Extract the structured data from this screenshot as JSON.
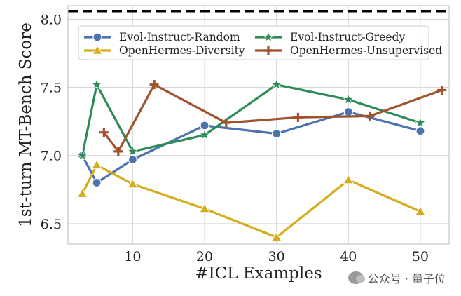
{
  "chart_data": {
    "type": "line",
    "xlabel": "#ICL Examples",
    "ylabel": "1st-turn MT-Bench Score",
    "xlim": [
      1,
      54
    ],
    "ylim": [
      6.35,
      8.1
    ],
    "xticks": [
      10,
      20,
      30,
      40,
      50
    ],
    "yticks": [
      6.5,
      7.0,
      7.5,
      8.0
    ],
    "grid": true,
    "reference_line": {
      "y": 8.06,
      "style": "dashed"
    },
    "legend_position": "top",
    "series": [
      {
        "name": "Evol-Instruct-Random",
        "color": "#4c72b0",
        "marker": "circle",
        "x": [
          3,
          5,
          10,
          20,
          30,
          40,
          50
        ],
        "y": [
          7.0,
          6.8,
          6.97,
          7.22,
          7.16,
          7.32,
          7.18
        ]
      },
      {
        "name": "Evol-Instruct-Greedy",
        "color": "#2e8b57",
        "marker": "star",
        "x": [
          3,
          5,
          10,
          20,
          30,
          40,
          50
        ],
        "y": [
          7.0,
          7.52,
          7.03,
          7.15,
          7.52,
          7.41,
          7.24
        ]
      },
      {
        "name": "OpenHermes-Diversity",
        "color": "#d4ac1d",
        "marker": "triangle",
        "x": [
          3,
          5,
          10,
          20,
          30,
          40,
          50
        ],
        "y": [
          6.72,
          6.93,
          6.79,
          6.61,
          6.4,
          6.82,
          6.59
        ]
      },
      {
        "name": "OpenHermes-Unsupervised",
        "color": "#a0522d",
        "marker": "plus",
        "x": [
          6,
          8,
          13,
          23,
          33,
          43,
          53
        ],
        "y": [
          7.17,
          7.03,
          7.52,
          7.24,
          7.28,
          7.29,
          7.48
        ]
      }
    ],
    "legend_order": [
      0,
      1,
      2,
      3
    ]
  },
  "watermark": {
    "text": "公众号 · 量子位",
    "icon": "wechat-icon"
  }
}
